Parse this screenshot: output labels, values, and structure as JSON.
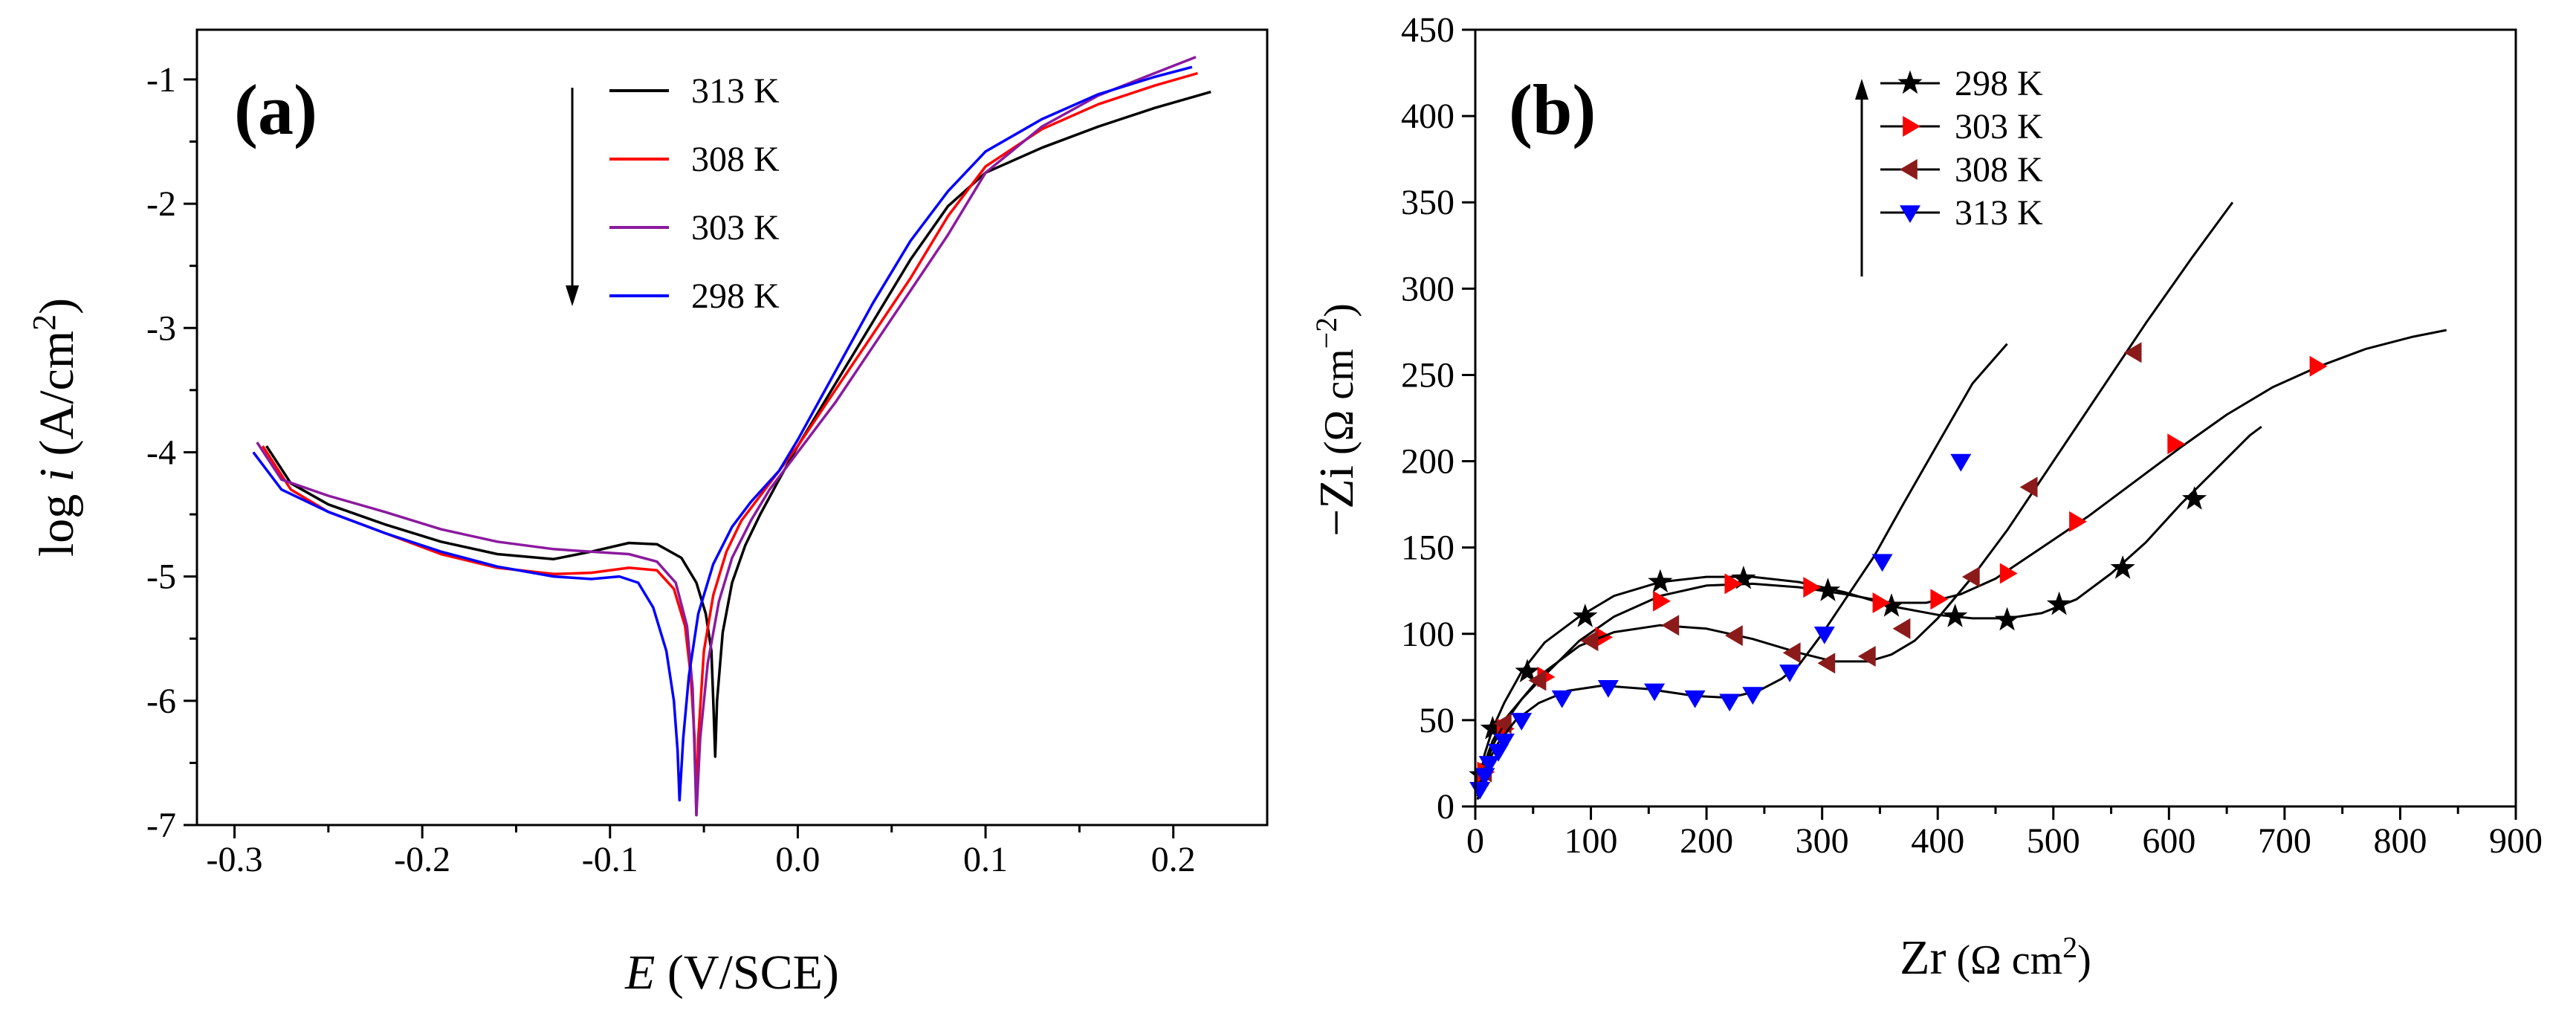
{
  "chart_data": [
    {
      "type": "line",
      "panel_label": "(a)",
      "xlabel_italic": "E",
      "xlabel_rest": " (V/SCE)",
      "ylabel_pre": "log ",
      "ylabel_italic": "i",
      "ylabel_post": " (A/cm",
      "ylabel_sup": "2",
      "ylabel_close": ")",
      "xlim": [
        -0.32,
        0.25
      ],
      "ylim": [
        -7,
        -0.6
      ],
      "xticks": [
        -0.3,
        -0.2,
        -0.1,
        0.0,
        0.1,
        0.2
      ],
      "xtick_labels": [
        "-0.3",
        "-0.2",
        "-0.1",
        "0.0",
        "0.1",
        "0.2"
      ],
      "yticks": [
        -7,
        -6,
        -5,
        -4,
        -3,
        -2,
        -1
      ],
      "ytick_labels": [
        "-7",
        "-6",
        "-5",
        "-4",
        "-3",
        "-2",
        "-1"
      ],
      "legend": [
        "313 K",
        "308 K",
        "303 K",
        "298 K"
      ],
      "legend_arrow": "down",
      "series": [
        {
          "name": "313 K",
          "color": "#000000",
          "x": [
            -0.283,
            -0.27,
            -0.25,
            -0.22,
            -0.19,
            -0.16,
            -0.13,
            -0.11,
            -0.09,
            -0.075,
            -0.062,
            -0.054,
            -0.049,
            -0.046,
            -0.045,
            -0.044,
            -0.043,
            -0.04,
            -0.035,
            -0.028,
            -0.02,
            -0.01,
            0.0,
            0.02,
            0.04,
            0.06,
            0.08,
            0.1,
            0.13,
            0.16,
            0.19,
            0.22
          ],
          "y": [
            -3.95,
            -4.25,
            -4.42,
            -4.58,
            -4.72,
            -4.82,
            -4.86,
            -4.8,
            -4.73,
            -4.74,
            -4.85,
            -5.05,
            -5.3,
            -5.6,
            -6.0,
            -6.45,
            -6.0,
            -5.45,
            -5.05,
            -4.75,
            -4.5,
            -4.22,
            -3.95,
            -3.45,
            -2.95,
            -2.45,
            -2.02,
            -1.75,
            -1.55,
            -1.38,
            -1.23,
            -1.1
          ]
        },
        {
          "name": "308 K",
          "color": "#ff0000",
          "x": [
            -0.285,
            -0.27,
            -0.25,
            -0.22,
            -0.19,
            -0.16,
            -0.13,
            -0.11,
            -0.09,
            -0.075,
            -0.066,
            -0.06,
            -0.057,
            -0.055,
            -0.054,
            -0.053,
            -0.05,
            -0.045,
            -0.038,
            -0.03,
            -0.02,
            -0.01,
            0.0,
            0.02,
            0.04,
            0.06,
            0.08,
            0.1,
            0.13,
            0.16,
            0.19,
            0.213
          ],
          "y": [
            -3.95,
            -4.3,
            -4.48,
            -4.65,
            -4.82,
            -4.93,
            -4.98,
            -4.97,
            -4.93,
            -4.95,
            -5.1,
            -5.4,
            -5.8,
            -6.3,
            -6.92,
            -6.3,
            -5.6,
            -5.15,
            -4.8,
            -4.55,
            -4.35,
            -4.15,
            -3.95,
            -3.5,
            -3.05,
            -2.6,
            -2.1,
            -1.7,
            -1.4,
            -1.2,
            -1.05,
            -0.95
          ]
        },
        {
          "name": "303 K",
          "color": "#8b1a9e",
          "x": [
            -0.288,
            -0.275,
            -0.25,
            -0.22,
            -0.19,
            -0.16,
            -0.13,
            -0.11,
            -0.09,
            -0.075,
            -0.065,
            -0.059,
            -0.056,
            -0.055,
            -0.054,
            -0.052,
            -0.048,
            -0.042,
            -0.035,
            -0.025,
            -0.015,
            0.0,
            0.02,
            0.04,
            0.06,
            0.08,
            0.1,
            0.13,
            0.16,
            0.19,
            0.212
          ],
          "y": [
            -3.92,
            -4.22,
            -4.35,
            -4.48,
            -4.62,
            -4.72,
            -4.78,
            -4.8,
            -4.82,
            -4.88,
            -5.05,
            -5.4,
            -5.9,
            -6.4,
            -6.92,
            -6.3,
            -5.7,
            -5.2,
            -4.85,
            -4.55,
            -4.3,
            -4.0,
            -3.6,
            -3.15,
            -2.7,
            -2.25,
            -1.75,
            -1.38,
            -1.13,
            -0.95,
            -0.82
          ]
        },
        {
          "name": "298 K",
          "color": "#0000ff",
          "x": [
            -0.29,
            -0.275,
            -0.25,
            -0.22,
            -0.19,
            -0.16,
            -0.13,
            -0.11,
            -0.095,
            -0.085,
            -0.077,
            -0.07,
            -0.066,
            -0.064,
            -0.063,
            -0.061,
            -0.058,
            -0.053,
            -0.045,
            -0.035,
            -0.025,
            -0.01,
            0.0,
            0.02,
            0.04,
            0.06,
            0.08,
            0.1,
            0.13,
            0.16,
            0.19,
            0.21
          ],
          "y": [
            -4.0,
            -4.3,
            -4.48,
            -4.65,
            -4.8,
            -4.92,
            -5.0,
            -5.02,
            -5.0,
            -5.05,
            -5.25,
            -5.6,
            -6.0,
            -6.4,
            -6.8,
            -6.3,
            -5.8,
            -5.3,
            -4.9,
            -4.6,
            -4.4,
            -4.15,
            -3.9,
            -3.35,
            -2.8,
            -2.3,
            -1.9,
            -1.58,
            -1.32,
            -1.12,
            -0.98,
            -0.9
          ]
        }
      ]
    },
    {
      "type": "line",
      "panel_label": "(b)",
      "xlabel_main": "Zr",
      "xlabel_unit": " (Ω cm",
      "xlabel_sup": "2",
      "xlabel_close": ")",
      "ylabel_main": "−Zi",
      "ylabel_unit": " (Ω cm",
      "ylabel_sup": "−2",
      "ylabel_close": ")",
      "xlim": [
        0,
        900
      ],
      "ylim": [
        0,
        450
      ],
      "xticks": [
        0,
        100,
        200,
        300,
        400,
        500,
        600,
        700,
        800,
        900
      ],
      "xtick_labels": [
        "0",
        "100",
        "200",
        "300",
        "400",
        "500",
        "600",
        "700",
        "800",
        "900"
      ],
      "yticks": [
        0,
        50,
        100,
        150,
        200,
        250,
        300,
        350,
        400,
        450
      ],
      "ytick_labels": [
        "0",
        "50",
        "100",
        "150",
        "200",
        "250",
        "300",
        "350",
        "400",
        "450"
      ],
      "legend": [
        "298 K",
        "303 K",
        "308 K",
        "313 K"
      ],
      "legend_arrow": "up",
      "series": [
        {
          "name": "298 K",
          "color": "#000000",
          "marker": "star",
          "line_x": [
            2,
            8,
            15,
            25,
            40,
            60,
            90,
            120,
            160,
            200,
            240,
            280,
            320,
            360,
            400,
            430,
            460,
            490,
            520,
            550,
            580,
            610,
            640,
            670,
            680
          ],
          "line_y": [
            8,
            30,
            45,
            60,
            78,
            95,
            110,
            122,
            130,
            133,
            133,
            130,
            124,
            116,
            111,
            109,
            109,
            112,
            120,
            135,
            153,
            175,
            195,
            215,
            220
          ],
          "marker_x": [
            5,
            15,
            45,
            95,
            160,
            232,
            305,
            360,
            415,
            460,
            505,
            560,
            622
          ],
          "marker_y": [
            18,
            45,
            78,
            110,
            130,
            132,
            125,
            116,
            110,
            108,
            117,
            138,
            178
          ]
        },
        {
          "name": "303 K",
          "color": "#ff0000",
          "marker": "triangle-right",
          "line_x": [
            2,
            8,
            15,
            25,
            40,
            60,
            90,
            120,
            160,
            200,
            240,
            280,
            320,
            360,
            390,
            420,
            450,
            490,
            530,
            570,
            610,
            650,
            690,
            730,
            770,
            810,
            840
          ],
          "line_y": [
            6,
            25,
            38,
            50,
            62,
            76,
            96,
            110,
            122,
            128,
            129,
            127,
            123,
            118,
            118,
            123,
            132,
            150,
            168,
            188,
            208,
            227,
            243,
            255,
            265,
            272,
            276
          ],
          "marker_x": [
            8,
            25,
            60,
            110,
            160,
            222,
            290,
            350,
            400,
            460,
            520,
            605,
            728
          ],
          "marker_y": [
            20,
            45,
            75,
            98,
            119,
            129,
            127,
            118,
            120,
            135,
            165,
            210,
            255
          ]
        },
        {
          "name": "308 K",
          "color": "#8b1a1a",
          "marker": "triangle-left",
          "line_x": [
            2,
            8,
            15,
            25,
            40,
            60,
            90,
            120,
            160,
            200,
            240,
            280,
            310,
            340,
            360,
            380,
            400,
            430,
            460,
            500,
            540,
            580,
            620,
            655
          ],
          "line_y": [
            6,
            22,
            35,
            48,
            62,
            78,
            93,
            101,
            105,
            103,
            97,
            89,
            84,
            84,
            88,
            96,
            109,
            133,
            160,
            200,
            240,
            280,
            318,
            350
          ],
          "marker_x": [
            8,
            25,
            55,
            100,
            170,
            225,
            275,
            305,
            340,
            370,
            430,
            480,
            570
          ],
          "marker_y": [
            20,
            48,
            73,
            96,
            105,
            99,
            89,
            83,
            87,
            103,
            133,
            185,
            263
          ]
        },
        {
          "name": "313 K",
          "color": "#0000ff",
          "marker": "triangle-down",
          "line_x": [
            2,
            6,
            12,
            20,
            35,
            55,
            80,
            110,
            150,
            190,
            220,
            245,
            265,
            280,
            300,
            320,
            345,
            370,
            400,
            430,
            460
          ],
          "line_y": [
            4,
            15,
            27,
            37,
            50,
            60,
            67,
            70,
            68,
            64,
            63,
            67,
            74,
            82,
            100,
            120,
            145,
            175,
            210,
            245,
            268
          ],
          "marker_x": [
            4,
            8,
            12,
            20,
            25,
            40,
            75,
            115,
            155,
            190,
            220,
            240,
            272,
            302,
            352,
            420
          ],
          "marker_y": [
            10,
            18,
            25,
            32,
            38,
            50,
            63,
            69,
            67,
            63,
            61,
            65,
            78,
            100,
            142,
            200
          ]
        }
      ]
    }
  ]
}
